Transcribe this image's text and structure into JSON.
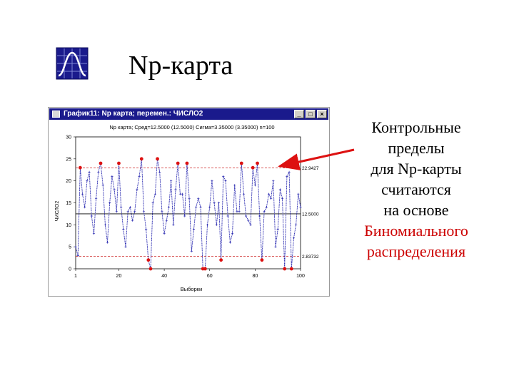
{
  "slide": {
    "title": "Np-карта",
    "logo_icon": "distribution-curve-icon",
    "callout_lines": [
      "Контрольные",
      "пределы",
      "для Np-карты",
      "считаются",
      "на основе"
    ],
    "callout_red_lines": [
      "Биномиального",
      "распределения"
    ],
    "callout_red_color": "#cc0000"
  },
  "window": {
    "title": "График11: Np карта; перемен.: ЧИСЛО2",
    "buttons": [
      "minimize-button",
      "maximize-button",
      "close-button"
    ],
    "titlebar_color": "#1a1a8c"
  },
  "chart_data": {
    "type": "line",
    "title": "Np карта; Сред=12.5000 (12.5000) Сигма=3.35000 (3.35000) n=100",
    "ylabel": "ЧИСЛО2",
    "xlabel": "Выборки",
    "xlim": [
      1,
      100
    ],
    "ylim": [
      0,
      30
    ],
    "xticks": [
      1,
      20,
      40,
      60,
      80,
      100
    ],
    "yticks": [
      0,
      5,
      10,
      15,
      20,
      25,
      30
    ],
    "ucl": 22.9427,
    "center": 12.5,
    "lcl": 2.83732,
    "limit_labels": [
      "22.9427",
      "12.5000",
      "2.83732"
    ],
    "grid": false,
    "series_color": "#2a2ab0",
    "out_of_control_color": "#dd1111",
    "values": [
      5,
      3,
      23,
      17,
      14,
      20,
      22,
      12,
      8,
      16,
      22,
      24,
      19,
      10,
      6,
      15,
      21,
      18,
      13,
      24,
      14,
      9,
      5,
      13,
      14,
      11,
      13,
      18,
      21,
      25,
      13,
      9,
      2,
      0,
      15,
      17,
      25,
      22,
      13,
      8,
      11,
      14,
      20,
      10,
      18,
      24,
      17,
      17,
      12,
      24,
      16,
      4,
      9,
      14,
      16,
      14,
      0,
      0,
      10,
      14,
      20,
      15,
      10,
      15,
      2,
      21,
      20,
      12,
      6,
      8,
      19,
      13,
      13,
      24,
      17,
      12,
      11,
      10,
      23,
      19,
      24,
      12,
      2,
      13,
      14,
      17,
      16,
      20,
      5,
      9,
      18,
      16,
      0,
      21,
      22,
      0,
      7,
      10,
      17,
      14
    ]
  }
}
